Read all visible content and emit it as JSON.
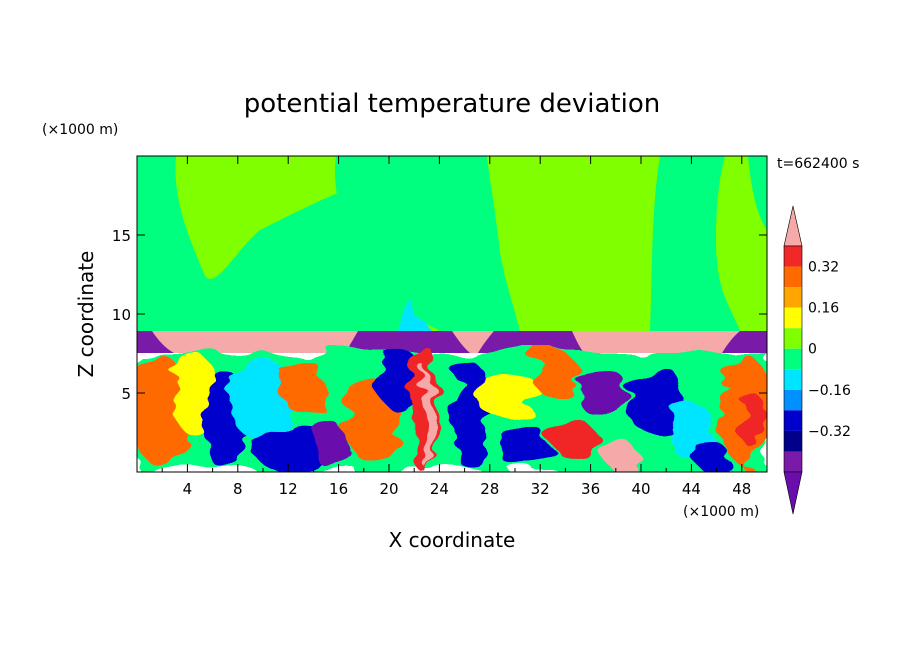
{
  "chart_data": {
    "type": "heatmap",
    "title": "potential temperature deviation",
    "time_label": "t=662400 s",
    "xlabel": "X coordinate",
    "ylabel": "Z coordinate",
    "x_unit": "(×1000 m)",
    "y_unit": "(×1000 m)",
    "xlim": [
      0,
      50
    ],
    "ylim": [
      0,
      20
    ],
    "x_ticks": [
      "4",
      "8",
      "12",
      "16",
      "20",
      "24",
      "28",
      "32",
      "36",
      "40",
      "44",
      "48"
    ],
    "y_ticks": [
      "5",
      "10",
      "15"
    ],
    "colorbar": {
      "labels": [
        "0.32",
        "0.16",
        "0",
        "−0.16",
        "−0.32"
      ],
      "levels": [
        0.4,
        0.32,
        0.24,
        0.16,
        0.08,
        0,
        -0.08,
        -0.16,
        -0.24,
        -0.32,
        -0.4
      ],
      "colors": [
        "#f5a9a9",
        "#f02828",
        "#ff6a00",
        "#ffa500",
        "#ffff00",
        "#7fff00",
        "#00ff7f",
        "#00e5ff",
        "#0090ff",
        "#0000cd",
        "#00008b",
        "#7a1aa8",
        "#6a0dad"
      ],
      "extend": "both"
    },
    "layers": [
      {
        "z_range": [
          9,
          20
        ],
        "values": [
          0,
          0.04
        ],
        "colors": [
          "#7fff00",
          "#00ff7f"
        ]
      },
      {
        "z_range": [
          7.5,
          9
        ],
        "values": [
          0.4,
          -0.4
        ],
        "colors": [
          "#f5a9a9",
          "#6a0dad"
        ]
      },
      {
        "z_range": [
          0,
          7.5
        ],
        "values": [
          -0.4,
          0.4
        ],
        "colors": [
          "mixed"
        ]
      }
    ]
  }
}
